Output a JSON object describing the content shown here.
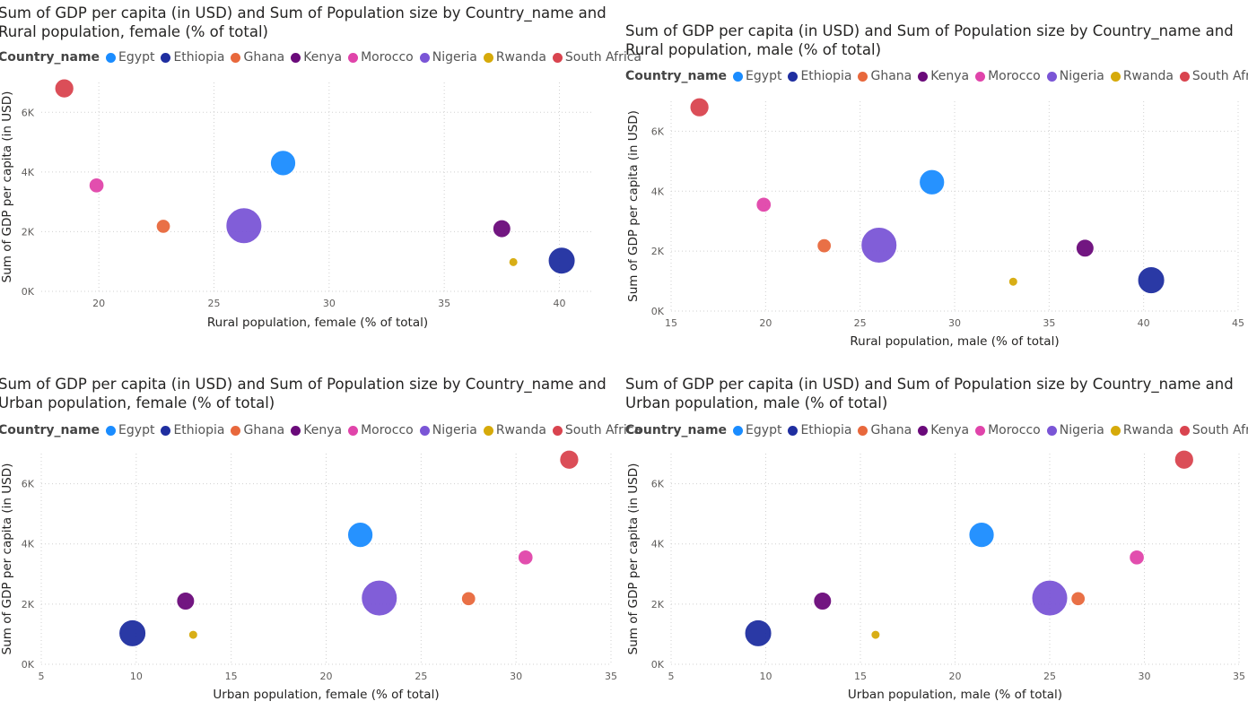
{
  "colors": {
    "Egypt": "#1a8cff",
    "Ethiopia": "#1f2ea0",
    "Ghana": "#e8683c",
    "Kenya": "#6a0a7a",
    "Morocco": "#e044aa",
    "Nigeria": "#7a55d6",
    "Rwanda": "#d6aa0a",
    "South Africa": "#d9444f"
  },
  "legend": {
    "title": "Country_name",
    "items": [
      "Egypt",
      "Ethiopia",
      "Ghana",
      "Kenya",
      "Morocco",
      "Nigeria",
      "Rwanda",
      "South Africa"
    ]
  },
  "chart_data": [
    {
      "type": "scatter",
      "title": "Sum of GDP per capita (in USD) and Sum of Population size by Country_name and\nRural population, female (% of total)",
      "xlabel": "Rural population, female (% of total)",
      "ylabel": "Sum of GDP per capita (in USD)",
      "xlim": [
        17.5,
        41.5
      ],
      "ylim": [
        0,
        7000
      ],
      "xticks": [
        20,
        25,
        30,
        35,
        40
      ],
      "yticks": [
        0,
        2000,
        4000,
        6000
      ],
      "ytick_labels": [
        "0K",
        "2K",
        "4K",
        "6K"
      ],
      "series": [
        {
          "name": "Egypt",
          "x": 28.0,
          "y": 4300,
          "size": 106
        },
        {
          "name": "Ethiopia",
          "x": 40.1,
          "y": 1030,
          "size": 120
        },
        {
          "name": "Ghana",
          "x": 22.8,
          "y": 2180,
          "size": 33
        },
        {
          "name": "Kenya",
          "x": 37.5,
          "y": 2100,
          "size": 53
        },
        {
          "name": "Morocco",
          "x": 19.9,
          "y": 3550,
          "size": 37
        },
        {
          "name": "Nigeria",
          "x": 26.3,
          "y": 2200,
          "size": 213
        },
        {
          "name": "Rwanda",
          "x": 38.0,
          "y": 980,
          "size": 13
        },
        {
          "name": "South Africa",
          "x": 18.5,
          "y": 6800,
          "size": 60
        }
      ]
    },
    {
      "type": "scatter",
      "title": "Sum of GDP per capita (in USD) and Sum of Population size by Country_name and\nRural population, male (% of total)",
      "xlabel": "Rural population, male (% of total)",
      "ylabel": "Sum of GDP per capita (in USD)",
      "xlim": [
        15,
        45
      ],
      "ylim": [
        0,
        7000
      ],
      "xticks": [
        15,
        20,
        25,
        30,
        35,
        40,
        45
      ],
      "yticks": [
        0,
        2000,
        4000,
        6000
      ],
      "ytick_labels": [
        "0K",
        "2K",
        "4K",
        "6K"
      ],
      "series": [
        {
          "name": "Egypt",
          "x": 28.8,
          "y": 4300,
          "size": 106
        },
        {
          "name": "Ethiopia",
          "x": 40.4,
          "y": 1030,
          "size": 120
        },
        {
          "name": "Ghana",
          "x": 23.1,
          "y": 2180,
          "size": 33
        },
        {
          "name": "Kenya",
          "x": 36.9,
          "y": 2100,
          "size": 53
        },
        {
          "name": "Morocco",
          "x": 19.9,
          "y": 3550,
          "size": 37
        },
        {
          "name": "Nigeria",
          "x": 26.0,
          "y": 2200,
          "size": 213
        },
        {
          "name": "Rwanda",
          "x": 33.1,
          "y": 980,
          "size": 13
        },
        {
          "name": "South Africa",
          "x": 16.5,
          "y": 6800,
          "size": 60
        }
      ]
    },
    {
      "type": "scatter",
      "title": "Sum of GDP per capita (in USD) and Sum of Population size by Country_name and\nUrban population, female (% of total)",
      "xlabel": "Urban population, female (% of total)",
      "ylabel": "Sum of GDP per capita (in USD)",
      "xlim": [
        5,
        35
      ],
      "ylim": [
        0,
        7000
      ],
      "xticks": [
        5,
        10,
        15,
        20,
        25,
        30,
        35
      ],
      "yticks": [
        0,
        2000,
        4000,
        6000
      ],
      "ytick_labels": [
        "0K",
        "2K",
        "4K",
        "6K"
      ],
      "series": [
        {
          "name": "Egypt",
          "x": 21.8,
          "y": 4300,
          "size": 106
        },
        {
          "name": "Ethiopia",
          "x": 9.8,
          "y": 1030,
          "size": 120
        },
        {
          "name": "Ghana",
          "x": 27.5,
          "y": 2180,
          "size": 33
        },
        {
          "name": "Kenya",
          "x": 12.6,
          "y": 2100,
          "size": 53
        },
        {
          "name": "Morocco",
          "x": 30.5,
          "y": 3550,
          "size": 37
        },
        {
          "name": "Nigeria",
          "x": 22.8,
          "y": 2200,
          "size": 213
        },
        {
          "name": "Rwanda",
          "x": 13.0,
          "y": 980,
          "size": 13
        },
        {
          "name": "South Africa",
          "x": 32.8,
          "y": 6800,
          "size": 60
        }
      ]
    },
    {
      "type": "scatter",
      "title": "Sum of GDP per capita (in USD) and Sum of Population size by Country_name and\nUrban population, male (% of total)",
      "xlabel": "Urban population, male (% of total)",
      "ylabel": "Sum of GDP per capita (in USD)",
      "xlim": [
        5,
        35
      ],
      "ylim": [
        0,
        7000
      ],
      "xticks": [
        5,
        10,
        15,
        20,
        25,
        30,
        35
      ],
      "yticks": [
        0,
        2000,
        4000,
        6000
      ],
      "ytick_labels": [
        "0K",
        "2K",
        "4K",
        "6K"
      ],
      "series": [
        {
          "name": "Egypt",
          "x": 21.4,
          "y": 4300,
          "size": 106
        },
        {
          "name": "Ethiopia",
          "x": 9.6,
          "y": 1030,
          "size": 120
        },
        {
          "name": "Ghana",
          "x": 26.5,
          "y": 2180,
          "size": 33
        },
        {
          "name": "Kenya",
          "x": 13.0,
          "y": 2100,
          "size": 53
        },
        {
          "name": "Morocco",
          "x": 29.6,
          "y": 3550,
          "size": 37
        },
        {
          "name": "Nigeria",
          "x": 25.0,
          "y": 2200,
          "size": 213
        },
        {
          "name": "Rwanda",
          "x": 15.8,
          "y": 980,
          "size": 13
        },
        {
          "name": "South Africa",
          "x": 32.1,
          "y": 6800,
          "size": 60
        }
      ]
    }
  ]
}
